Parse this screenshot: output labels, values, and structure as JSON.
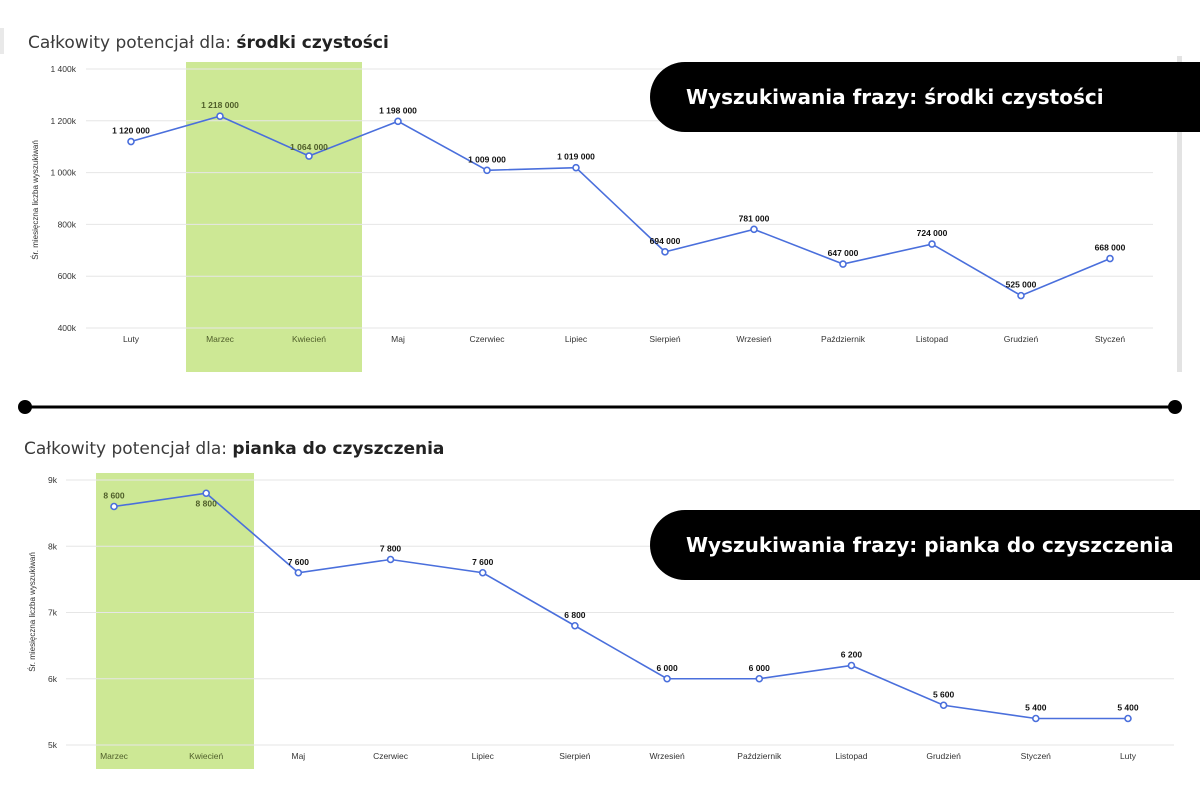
{
  "divider": {
    "color": "#000000"
  },
  "colors": {
    "line": "#4a6fdc",
    "highlight": "#c8e68a",
    "grid": "#e6e6e6",
    "badge_bg": "#000000"
  },
  "chart_data": [
    {
      "type": "line",
      "title_prefix": "Całkowity potencjał dla: ",
      "title_phrase": "środki czystości",
      "badge_text": "Wyszukiwania frazy: środki czystości",
      "ylabel": "Śr. miesięczna liczba wyszukiwań",
      "ylim": [
        400000,
        1400000
      ],
      "yticks": [
        {
          "value": 400000,
          "label": "400k"
        },
        {
          "value": 600000,
          "label": "600k"
        },
        {
          "value": 800000,
          "label": "800k"
        },
        {
          "value": 1000000,
          "label": "1 000k"
        },
        {
          "value": 1200000,
          "label": "1 200k"
        },
        {
          "value": 1400000,
          "label": "1 400k"
        }
      ],
      "categories": [
        "Luty",
        "Marzec",
        "Kwiecień",
        "Maj",
        "Czerwiec",
        "Lipiec",
        "Sierpień",
        "Wrzesień",
        "Październik",
        "Listopad",
        "Grudzień",
        "Styczeń"
      ],
      "values": [
        1120000,
        1218000,
        1064000,
        1198000,
        1009000,
        1019000,
        694000,
        781000,
        647000,
        724000,
        525000,
        668000
      ],
      "value_labels": [
        "1 120 000",
        "1 218 000",
        "1 064 000",
        "1 198 000",
        "1 009 000",
        "1 019 000",
        "694 000",
        "781 000",
        "647 000",
        "724 000",
        "525 000",
        "668 000"
      ],
      "highlight_categories": [
        "Marzec",
        "Kwiecień"
      ],
      "grid": true
    },
    {
      "type": "line",
      "title_prefix": "Całkowity potencjał dla: ",
      "title_phrase": "pianka do czyszczenia",
      "badge_text": "Wyszukiwania frazy: pianka do czyszczenia",
      "ylabel": "Śr. miesięczna liczba wyszukiwań",
      "ylim": [
        5000,
        9000
      ],
      "yticks": [
        {
          "value": 5000,
          "label": "5k"
        },
        {
          "value": 6000,
          "label": "6k"
        },
        {
          "value": 7000,
          "label": "7k"
        },
        {
          "value": 8000,
          "label": "8k"
        },
        {
          "value": 9000,
          "label": "9k"
        }
      ],
      "categories": [
        "Marzec",
        "Kwiecień",
        "Maj",
        "Czerwiec",
        "Lipiec",
        "Sierpień",
        "Wrzesień",
        "Październik",
        "Listopad",
        "Grudzień",
        "Styczeń",
        "Luty"
      ],
      "values": [
        8600,
        8800,
        7600,
        7800,
        7600,
        6800,
        6000,
        6000,
        6200,
        5600,
        5400,
        5400
      ],
      "value_labels": [
        "8 600",
        "8 800",
        "7 600",
        "7 800",
        "7 600",
        "6 800",
        "6 000",
        "6 000",
        "6 200",
        "5 600",
        "5 400",
        "5 400"
      ],
      "highlight_categories": [
        "Marzec",
        "Kwiecień"
      ],
      "grid": true
    }
  ]
}
